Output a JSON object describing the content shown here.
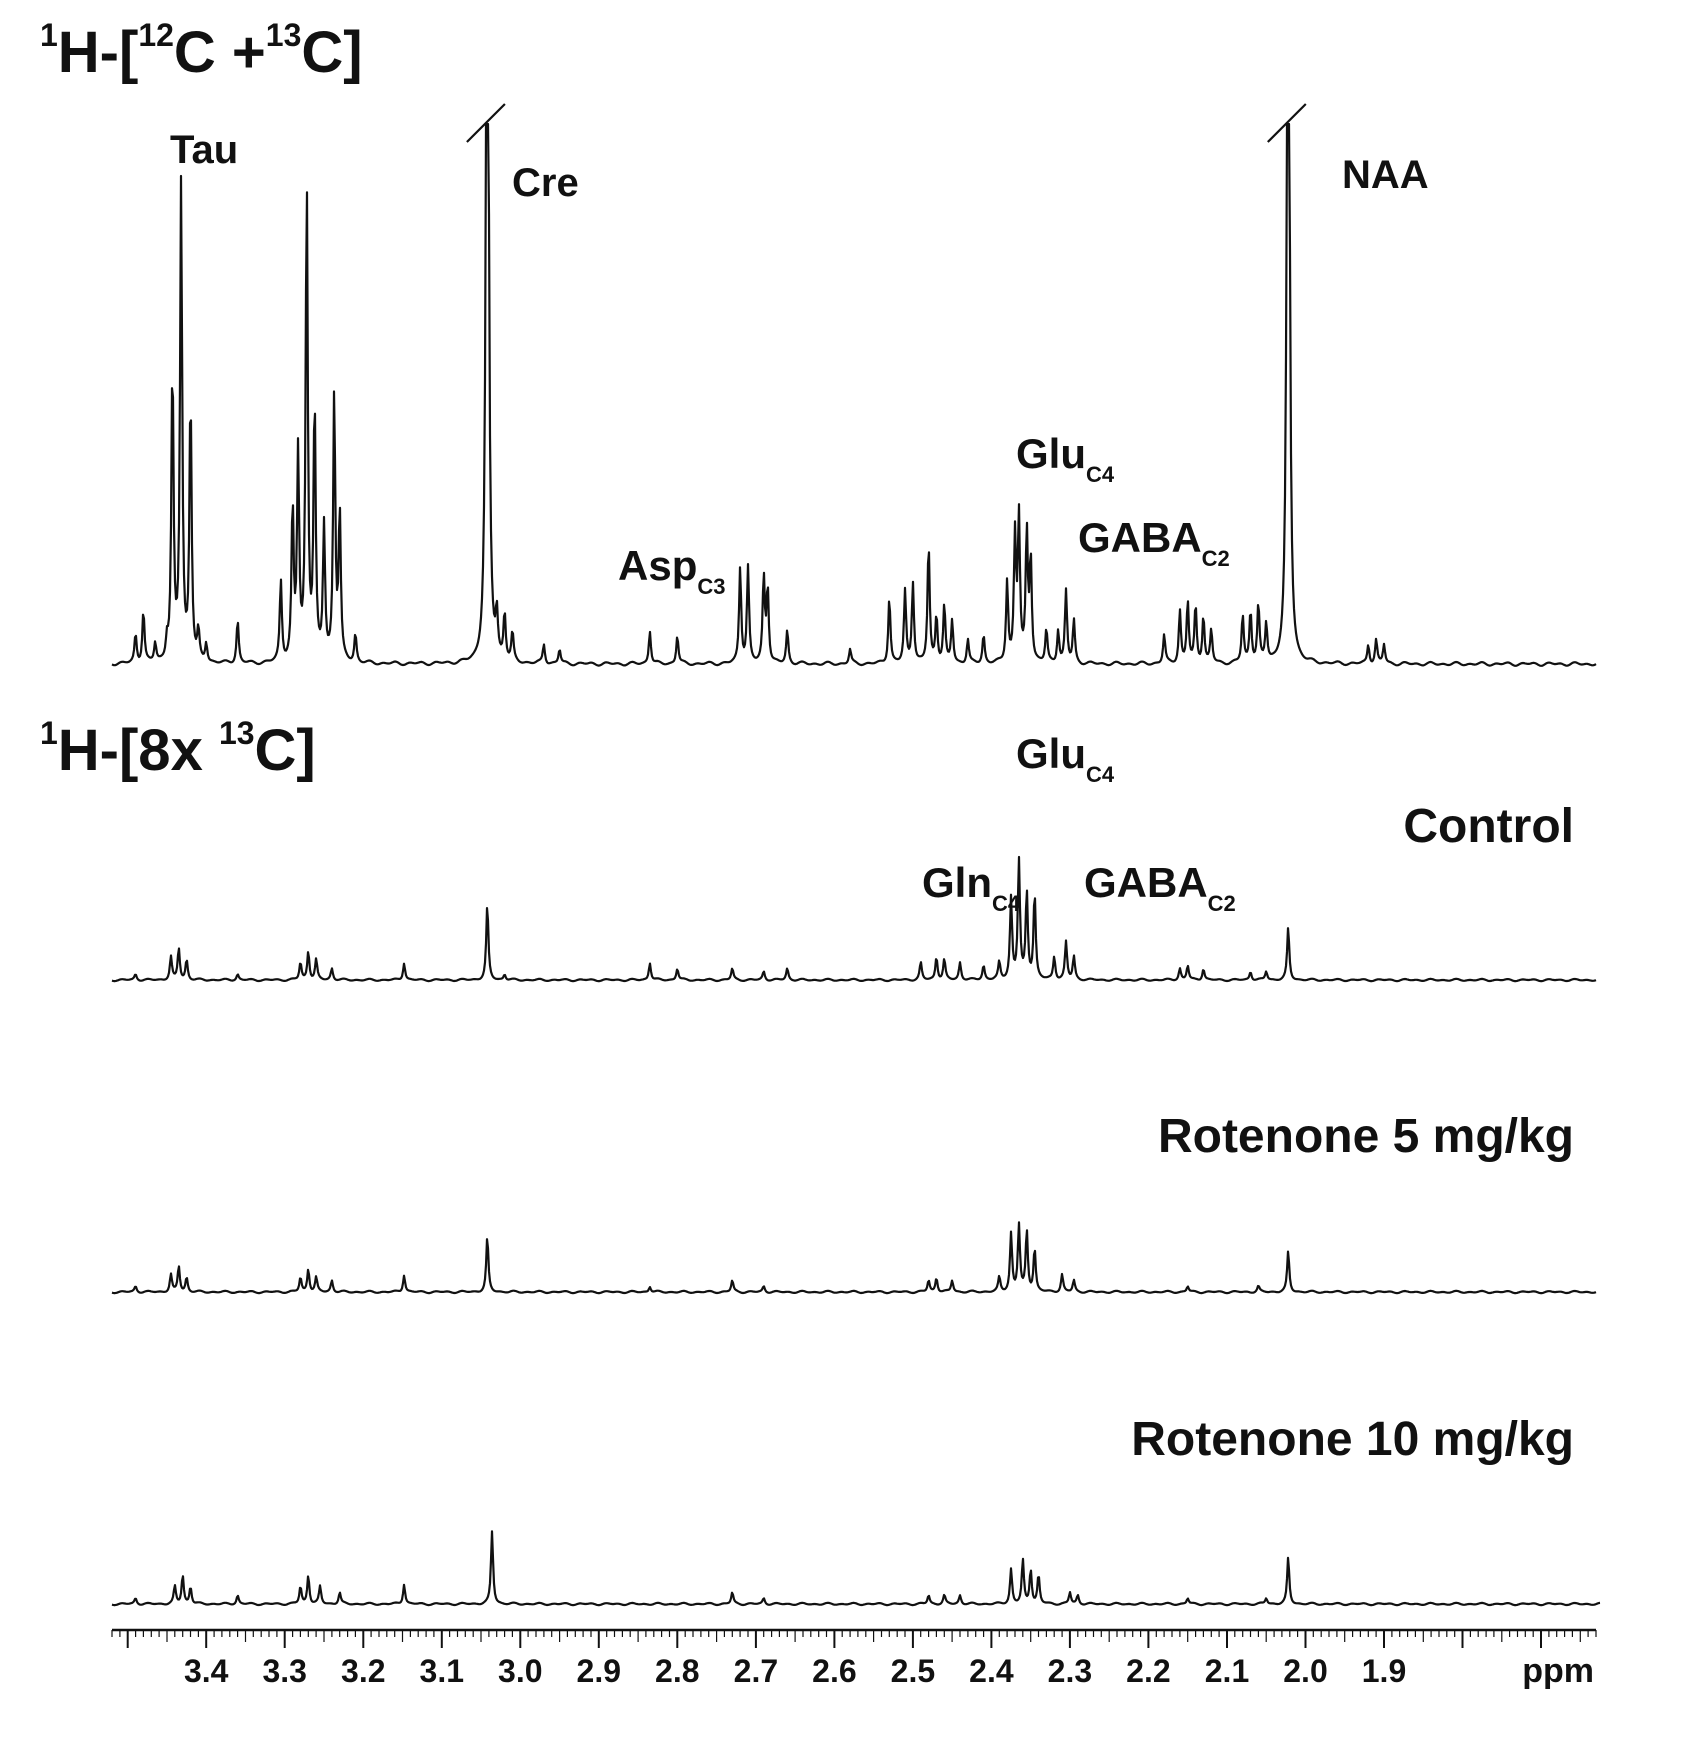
{
  "chart_data": {
    "type": "line",
    "title": "",
    "xlabel": "ppm",
    "ylabel": "",
    "x_reversed": true,
    "xlim": [
      3.52,
      1.63
    ],
    "grid": false,
    "ticks": [
      3.4,
      3.3,
      3.2,
      3.1,
      3.0,
      2.9,
      2.8,
      2.7,
      2.6,
      2.5,
      2.4,
      2.3,
      2.2,
      2.1,
      2.0,
      1.9
    ],
    "tick_labels": [
      "3.4",
      "3.3",
      "3.2",
      "3.1",
      "3.0",
      "2.9",
      "2.8",
      "2.7",
      "2.6",
      "2.5",
      "2.4",
      "2.3",
      "2.2",
      "2.1",
      "2.0",
      "1.9"
    ],
    "axis_unit_label": "ppm",
    "panel_titles": {
      "top": {
        "pre": "1",
        "mid1": "H-[",
        "sup1": "12",
        "mid2": "C +",
        "sup2": "13",
        "post": "C]"
      },
      "bottom": {
        "pre": "1",
        "mid1": "H-[8x ",
        "sup1": "13",
        "post": "C]"
      }
    },
    "annotations": {
      "tau": "Tau",
      "cre": "Cre",
      "naa": "NAA",
      "asp": {
        "main": "Asp",
        "sub": "C3"
      },
      "glu_top": {
        "main": "Glu",
        "sub": "C4"
      },
      "gaba_top": {
        "main": "GABA",
        "sub": "C2"
      },
      "glu_bottom": {
        "main": "Glu",
        "sub": "C4"
      },
      "gln_bottom": {
        "main": "Gln",
        "sub": "C4"
      },
      "gaba_bottom": {
        "main": "GABA",
        "sub": "C2"
      }
    },
    "series": [
      {
        "name": "1H-[12C +13C]",
        "truncated_peaks": [
          3.04,
          2.02
        ],
        "peaks": [
          {
            "x": 3.49,
            "h": 0.06
          },
          {
            "x": 3.48,
            "h": 0.11
          },
          {
            "x": 3.465,
            "h": 0.04
          },
          {
            "x": 3.45,
            "h": 0.04
          },
          {
            "x": 3.443,
            "h": 0.62
          },
          {
            "x": 3.432,
            "h": 1.0
          },
          {
            "x": 3.42,
            "h": 0.56
          },
          {
            "x": 3.41,
            "h": 0.06
          },
          {
            "x": 3.4,
            "h": 0.04
          },
          {
            "x": 3.36,
            "h": 0.09
          },
          {
            "x": 3.305,
            "h": 0.17
          },
          {
            "x": 3.29,
            "h": 0.32
          },
          {
            "x": 3.283,
            "h": 0.43
          },
          {
            "x": 3.272,
            "h": 1.0
          },
          {
            "x": 3.262,
            "h": 0.54
          },
          {
            "x": 3.25,
            "h": 0.28
          },
          {
            "x": 3.237,
            "h": 0.56
          },
          {
            "x": 3.23,
            "h": 0.31
          },
          {
            "x": 3.21,
            "h": 0.06
          },
          {
            "x": 3.042,
            "h": 2.6
          },
          {
            "x": 3.03,
            "h": 0.09
          },
          {
            "x": 3.02,
            "h": 0.1
          },
          {
            "x": 3.01,
            "h": 0.06
          },
          {
            "x": 2.97,
            "h": 0.04
          },
          {
            "x": 2.95,
            "h": 0.03
          },
          {
            "x": 2.835,
            "h": 0.07
          },
          {
            "x": 2.8,
            "h": 0.06
          },
          {
            "x": 2.72,
            "h": 0.2
          },
          {
            "x": 2.71,
            "h": 0.2
          },
          {
            "x": 2.69,
            "h": 0.18
          },
          {
            "x": 2.685,
            "h": 0.16
          },
          {
            "x": 2.66,
            "h": 0.07
          },
          {
            "x": 2.58,
            "h": 0.03
          },
          {
            "x": 2.53,
            "h": 0.14
          },
          {
            "x": 2.51,
            "h": 0.15
          },
          {
            "x": 2.5,
            "h": 0.17
          },
          {
            "x": 2.48,
            "h": 0.25
          },
          {
            "x": 2.47,
            "h": 0.1
          },
          {
            "x": 2.46,
            "h": 0.12
          },
          {
            "x": 2.45,
            "h": 0.09
          },
          {
            "x": 2.43,
            "h": 0.05
          },
          {
            "x": 2.41,
            "h": 0.06
          },
          {
            "x": 2.38,
            "h": 0.17
          },
          {
            "x": 2.37,
            "h": 0.26
          },
          {
            "x": 2.365,
            "h": 0.3
          },
          {
            "x": 2.355,
            "h": 0.27
          },
          {
            "x": 2.35,
            "h": 0.22
          },
          {
            "x": 2.33,
            "h": 0.07
          },
          {
            "x": 2.315,
            "h": 0.07
          },
          {
            "x": 2.305,
            "h": 0.15
          },
          {
            "x": 2.295,
            "h": 0.09
          },
          {
            "x": 2.18,
            "h": 0.06
          },
          {
            "x": 2.16,
            "h": 0.11
          },
          {
            "x": 2.15,
            "h": 0.13
          },
          {
            "x": 2.14,
            "h": 0.12
          },
          {
            "x": 2.13,
            "h": 0.1
          },
          {
            "x": 2.12,
            "h": 0.07
          },
          {
            "x": 2.08,
            "h": 0.1
          },
          {
            "x": 2.07,
            "h": 0.11
          },
          {
            "x": 2.06,
            "h": 0.12
          },
          {
            "x": 2.05,
            "h": 0.08
          },
          {
            "x": 2.022,
            "h": 2.6
          },
          {
            "x": 1.92,
            "h": 0.04
          },
          {
            "x": 1.91,
            "h": 0.05
          },
          {
            "x": 1.9,
            "h": 0.04
          }
        ]
      },
      {
        "name": "Control",
        "peaks": [
          {
            "x": 3.49,
            "h": 0.02
          },
          {
            "x": 3.445,
            "h": 0.08
          },
          {
            "x": 3.435,
            "h": 0.11
          },
          {
            "x": 3.425,
            "h": 0.07
          },
          {
            "x": 3.36,
            "h": 0.02
          },
          {
            "x": 3.28,
            "h": 0.06
          },
          {
            "x": 3.27,
            "h": 0.1
          },
          {
            "x": 3.26,
            "h": 0.07
          },
          {
            "x": 3.24,
            "h": 0.04
          },
          {
            "x": 3.148,
            "h": 0.06
          },
          {
            "x": 3.042,
            "h": 0.26
          },
          {
            "x": 3.02,
            "h": 0.02
          },
          {
            "x": 2.835,
            "h": 0.06
          },
          {
            "x": 2.8,
            "h": 0.04
          },
          {
            "x": 2.73,
            "h": 0.04
          },
          {
            "x": 2.69,
            "h": 0.03
          },
          {
            "x": 2.66,
            "h": 0.04
          },
          {
            "x": 2.49,
            "h": 0.06
          },
          {
            "x": 2.47,
            "h": 0.08
          },
          {
            "x": 2.46,
            "h": 0.07
          },
          {
            "x": 2.44,
            "h": 0.06
          },
          {
            "x": 2.41,
            "h": 0.05
          },
          {
            "x": 2.39,
            "h": 0.06
          },
          {
            "x": 2.375,
            "h": 0.28
          },
          {
            "x": 2.365,
            "h": 0.41
          },
          {
            "x": 2.355,
            "h": 0.3
          },
          {
            "x": 2.345,
            "h": 0.3
          },
          {
            "x": 2.32,
            "h": 0.08
          },
          {
            "x": 2.305,
            "h": 0.13
          },
          {
            "x": 2.295,
            "h": 0.08
          },
          {
            "x": 2.16,
            "h": 0.04
          },
          {
            "x": 2.15,
            "h": 0.05
          },
          {
            "x": 2.13,
            "h": 0.04
          },
          {
            "x": 2.07,
            "h": 0.03
          },
          {
            "x": 2.05,
            "h": 0.03
          },
          {
            "x": 2.022,
            "h": 0.18
          }
        ]
      },
      {
        "name": "Rotenone 5 mg/kg",
        "peaks": [
          {
            "x": 3.49,
            "h": 0.02
          },
          {
            "x": 3.445,
            "h": 0.06
          },
          {
            "x": 3.435,
            "h": 0.09
          },
          {
            "x": 3.425,
            "h": 0.05
          },
          {
            "x": 3.28,
            "h": 0.05
          },
          {
            "x": 3.27,
            "h": 0.08
          },
          {
            "x": 3.26,
            "h": 0.05
          },
          {
            "x": 3.24,
            "h": 0.04
          },
          {
            "x": 3.148,
            "h": 0.06
          },
          {
            "x": 3.042,
            "h": 0.19
          },
          {
            "x": 2.835,
            "h": 0.02
          },
          {
            "x": 2.73,
            "h": 0.04
          },
          {
            "x": 2.69,
            "h": 0.02
          },
          {
            "x": 2.48,
            "h": 0.04
          },
          {
            "x": 2.47,
            "h": 0.05
          },
          {
            "x": 2.45,
            "h": 0.04
          },
          {
            "x": 2.39,
            "h": 0.05
          },
          {
            "x": 2.375,
            "h": 0.2
          },
          {
            "x": 2.365,
            "h": 0.23
          },
          {
            "x": 2.355,
            "h": 0.21
          },
          {
            "x": 2.345,
            "h": 0.15
          },
          {
            "x": 2.31,
            "h": 0.06
          },
          {
            "x": 2.295,
            "h": 0.04
          },
          {
            "x": 2.15,
            "h": 0.02
          },
          {
            "x": 2.06,
            "h": 0.02
          },
          {
            "x": 2.022,
            "h": 0.14
          }
        ]
      },
      {
        "name": "Rotenone 10 mg/kg",
        "peaks": [
          {
            "x": 3.49,
            "h": 0.02
          },
          {
            "x": 3.44,
            "h": 0.06
          },
          {
            "x": 3.43,
            "h": 0.1
          },
          {
            "x": 3.42,
            "h": 0.06
          },
          {
            "x": 3.36,
            "h": 0.03
          },
          {
            "x": 3.28,
            "h": 0.06
          },
          {
            "x": 3.27,
            "h": 0.1
          },
          {
            "x": 3.255,
            "h": 0.06
          },
          {
            "x": 3.23,
            "h": 0.04
          },
          {
            "x": 3.148,
            "h": 0.07
          },
          {
            "x": 3.036,
            "h": 0.25
          },
          {
            "x": 2.73,
            "h": 0.04
          },
          {
            "x": 2.69,
            "h": 0.02
          },
          {
            "x": 2.48,
            "h": 0.03
          },
          {
            "x": 2.46,
            "h": 0.03
          },
          {
            "x": 2.44,
            "h": 0.03
          },
          {
            "x": 2.375,
            "h": 0.12
          },
          {
            "x": 2.36,
            "h": 0.15
          },
          {
            "x": 2.35,
            "h": 0.12
          },
          {
            "x": 2.34,
            "h": 0.1
          },
          {
            "x": 2.3,
            "h": 0.04
          },
          {
            "x": 2.29,
            "h": 0.03
          },
          {
            "x": 2.15,
            "h": 0.02
          },
          {
            "x": 2.05,
            "h": 0.02
          },
          {
            "x": 2.022,
            "h": 0.16
          }
        ]
      }
    ]
  }
}
